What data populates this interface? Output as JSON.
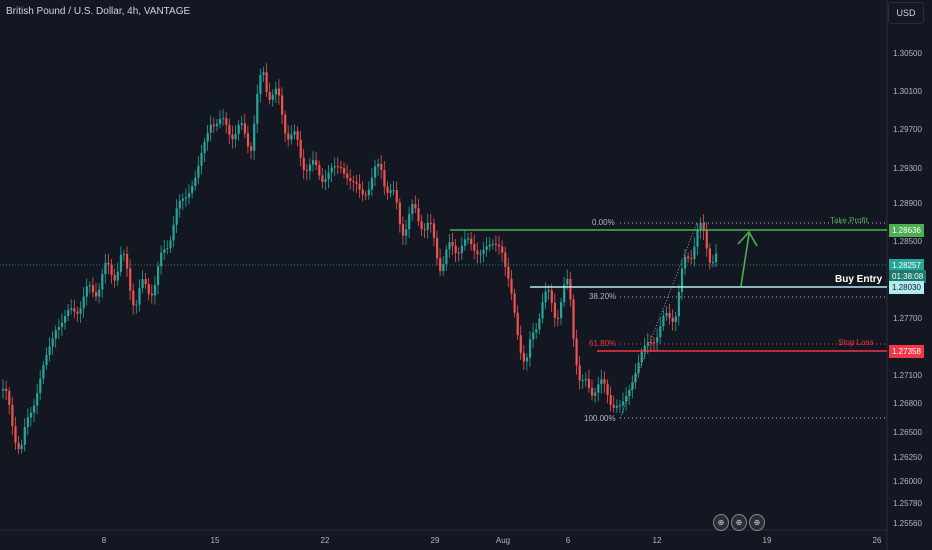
{
  "header": {
    "title": "British Pound / U.S. Dollar, 4h, VANTAGE",
    "currency_button": "USD"
  },
  "icons": [
    {
      "name": "flag-icon",
      "glyph": "⊕"
    },
    {
      "name": "flag-icon",
      "glyph": "⊕"
    },
    {
      "name": "flag-icon",
      "glyph": "⊕"
    }
  ],
  "colors": {
    "background": "#131722",
    "up": "#26a69a",
    "down": "#ef5350",
    "take_profit": "#4caf50",
    "stop_loss": "#f23645",
    "buy_entry": "#b2ebf2",
    "last_price": "#26a69a"
  },
  "chart_data": {
    "type": "candlestick",
    "symbol": "British Pound / U.S. Dollar",
    "interval": "4h",
    "broker": "VANTAGE",
    "y_ticks": [
      "1.30500",
      "1.30100",
      "1.29700",
      "1.29300",
      "1.28900",
      "1.28500",
      "1.27700",
      "1.27100",
      "1.26800",
      "1.26500",
      "1.26250",
      "1.26000",
      "1.25780",
      "1.25560"
    ],
    "x_ticks": [
      "8",
      "15",
      "22",
      "29",
      "Aug",
      "6",
      "12",
      "19",
      "26"
    ],
    "path_points": [
      [
        0,
        1.27
      ],
      [
        10,
        1.266
      ],
      [
        20,
        1.263
      ],
      [
        35,
        1.269
      ],
      [
        55,
        1.276
      ],
      [
        75,
        1.278
      ],
      [
        100,
        1.281
      ],
      [
        120,
        1.283
      ],
      [
        135,
        1.279
      ],
      [
        155,
        1.281
      ],
      [
        175,
        1.288
      ],
      [
        195,
        1.292
      ],
      [
        210,
        1.298
      ],
      [
        230,
        1.297
      ],
      [
        250,
        1.296
      ],
      [
        262,
        1.303
      ],
      [
        275,
        1.3
      ],
      [
        300,
        1.294
      ],
      [
        320,
        1.292
      ],
      [
        340,
        1.293
      ],
      [
        360,
        1.29
      ],
      [
        380,
        1.293
      ],
      [
        400,
        1.287
      ],
      [
        420,
        1.288
      ],
      [
        440,
        1.283
      ],
      [
        460,
        1.285
      ],
      [
        480,
        1.284
      ],
      [
        500,
        1.285
      ],
      [
        510,
        1.279
      ],
      [
        525,
        1.2715
      ],
      [
        540,
        1.279
      ],
      [
        555,
        1.278
      ],
      [
        568,
        1.28
      ],
      [
        580,
        1.269
      ],
      [
        595,
        1.27
      ],
      [
        605,
        1.269
      ],
      [
        620,
        1.267
      ],
      [
        640,
        1.273
      ],
      [
        660,
        1.276
      ],
      [
        675,
        1.278
      ],
      [
        685,
        1.283
      ],
      [
        695,
        1.286
      ],
      [
        705,
        1.285
      ],
      [
        718,
        1.2826
      ]
    ],
    "last_price": {
      "value": "1.28257",
      "countdown": "01:38:08"
    },
    "levels": [
      {
        "name": "Take Profit",
        "value": "1.28636"
      },
      {
        "name": "Buy Entry",
        "value": "1.28030"
      },
      {
        "name": "Stop Loss",
        "value": "1.27358"
      }
    ],
    "fibonacci": [
      {
        "label": "0.00%"
      },
      {
        "label": "38.20%"
      },
      {
        "label": "61.80%"
      },
      {
        "label": "100.00%"
      }
    ]
  }
}
